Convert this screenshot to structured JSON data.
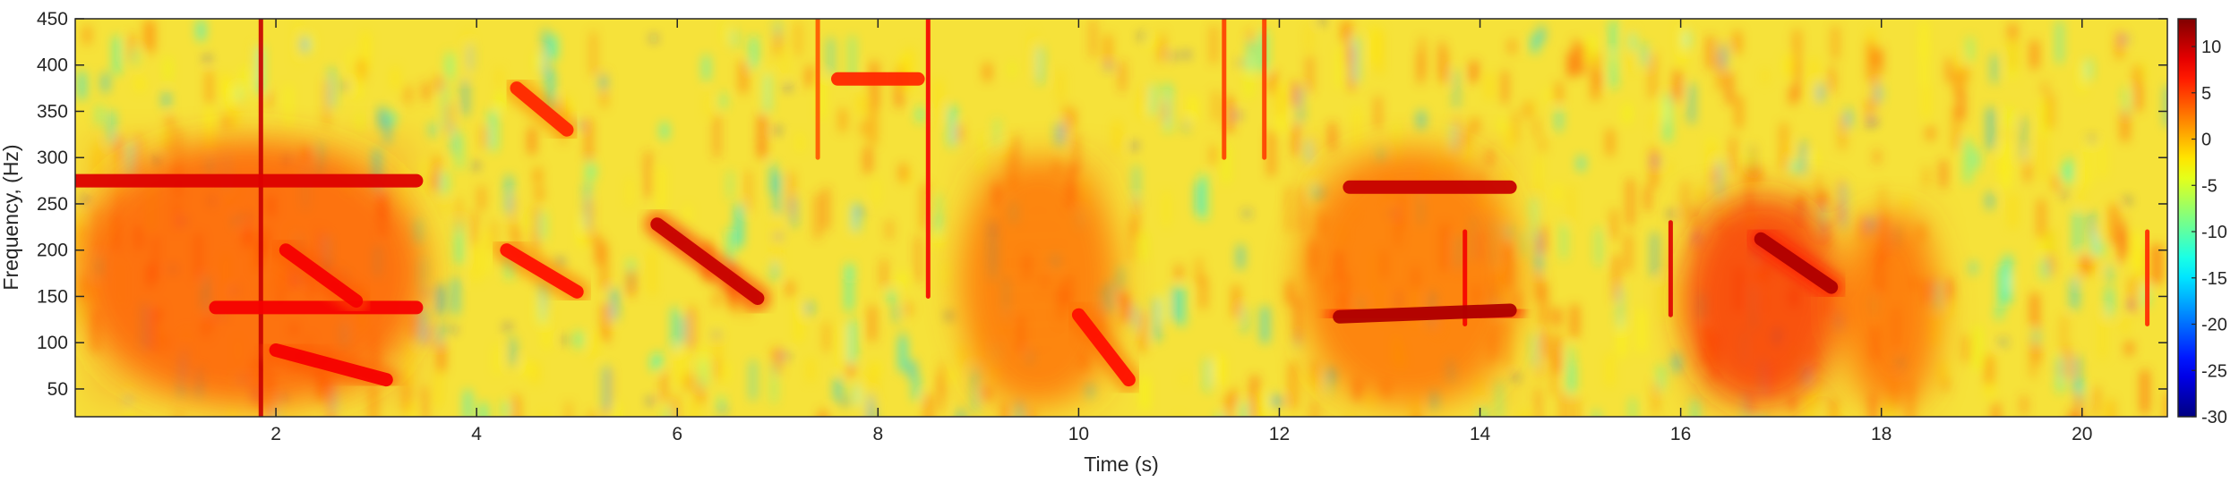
{
  "chart_data": {
    "type": "heatmap",
    "title": "",
    "xlabel": "Time (s)",
    "ylabel": "Frequency, (Hz)",
    "xlim": [
      0,
      20.85
    ],
    "ylim": [
      20,
      450
    ],
    "xticks": [
      2,
      4,
      6,
      8,
      10,
      12,
      14,
      16,
      18,
      20
    ],
    "yticks": [
      50,
      100,
      150,
      200,
      250,
      300,
      350,
      400,
      450
    ],
    "colorbar": {
      "range": [
        -30,
        13
      ],
      "ticks": [
        10,
        5,
        0,
        -5,
        -10,
        -15,
        -20,
        -25,
        -30
      ],
      "colormap": "jet"
    },
    "grid": false,
    "features": [
      {
        "kind": "band",
        "t": [
          0.0,
          3.4
        ],
        "f": [
          275,
          275
        ],
        "level": 9
      },
      {
        "kind": "band",
        "t": [
          1.4,
          3.4
        ],
        "f": [
          138,
          138
        ],
        "level": 8
      },
      {
        "kind": "band",
        "t": [
          2.0,
          3.1
        ],
        "f": [
          92,
          60
        ],
        "level": 8
      },
      {
        "kind": "band",
        "t": [
          2.1,
          2.8
        ],
        "f": [
          200,
          145
        ],
        "level": 8
      },
      {
        "kind": "band",
        "t": [
          4.3,
          5.0
        ],
        "f": [
          200,
          155
        ],
        "level": 7
      },
      {
        "kind": "band",
        "t": [
          4.4,
          4.9
        ],
        "f": [
          375,
          330
        ],
        "level": 6
      },
      {
        "kind": "band",
        "t": [
          5.8,
          6.8
        ],
        "f": [
          228,
          148
        ],
        "level": 10
      },
      {
        "kind": "band",
        "t": [
          7.6,
          8.4
        ],
        "f": [
          385,
          385
        ],
        "level": 6
      },
      {
        "kind": "band",
        "t": [
          10.0,
          10.5
        ],
        "f": [
          130,
          60
        ],
        "level": 7
      },
      {
        "kind": "band",
        "t": [
          12.7,
          14.3
        ],
        "f": [
          268,
          268
        ],
        "level": 10
      },
      {
        "kind": "band",
        "t": [
          12.6,
          14.3
        ],
        "f": [
          128,
          135
        ],
        "level": 11
      },
      {
        "kind": "band",
        "t": [
          16.8,
          17.5
        ],
        "f": [
          212,
          160
        ],
        "level": 11
      },
      {
        "kind": "patch",
        "t": [
          0.0,
          3.5
        ],
        "f": [
          30,
          320
        ],
        "level": 4
      },
      {
        "kind": "patch",
        "t": [
          8.8,
          10.4
        ],
        "f": [
          30,
          300
        ],
        "level": 3
      },
      {
        "kind": "patch",
        "t": [
          12.2,
          14.4
        ],
        "f": [
          30,
          310
        ],
        "level": 3
      },
      {
        "kind": "patch",
        "t": [
          16.0,
          17.6
        ],
        "f": [
          30,
          260
        ],
        "level": 6
      },
      {
        "kind": "patch",
        "t": [
          17.6,
          18.6
        ],
        "f": [
          30,
          240
        ],
        "level": 3
      },
      {
        "kind": "vline",
        "t": 1.85,
        "f": [
          20,
          450
        ],
        "level": 10
      },
      {
        "kind": "vline",
        "t": 7.4,
        "f": [
          300,
          450
        ],
        "level": 4
      },
      {
        "kind": "vline",
        "t": 8.5,
        "f": [
          150,
          450
        ],
        "level": 8
      },
      {
        "kind": "vline",
        "t": 11.45,
        "f": [
          300,
          450
        ],
        "level": 5
      },
      {
        "kind": "vline",
        "t": 11.85,
        "f": [
          300,
          450
        ],
        "level": 5
      },
      {
        "kind": "vline",
        "t": 13.85,
        "f": [
          120,
          220
        ],
        "level": 8
      },
      {
        "kind": "vline",
        "t": 15.9,
        "f": [
          130,
          230
        ],
        "level": 9
      },
      {
        "kind": "vline",
        "t": 20.65,
        "f": [
          120,
          220
        ],
        "level": 6
      }
    ]
  }
}
